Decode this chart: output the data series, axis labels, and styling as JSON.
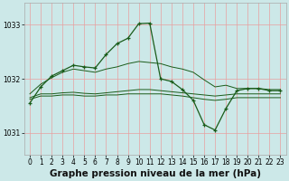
{
  "background_color": "#cce8e8",
  "grid_color": "#e8a0a0",
  "line_color": "#1a5c1a",
  "title": "Graphe pression niveau de la mer (hPa)",
  "xlim": [
    -0.5,
    23.5
  ],
  "ylim": [
    1030.6,
    1033.4
  ],
  "yticks": [
    1031,
    1032,
    1033
  ],
  "xticks": [
    0,
    1,
    2,
    3,
    4,
    5,
    6,
    7,
    8,
    9,
    10,
    11,
    12,
    13,
    14,
    15,
    16,
    17,
    18,
    19,
    20,
    21,
    22,
    23
  ],
  "series_main": {
    "x": [
      0,
      1,
      2,
      3,
      4,
      5,
      6,
      7,
      8,
      9,
      10,
      11,
      12,
      13,
      14,
      15,
      16,
      17,
      18,
      19,
      20,
      21,
      22,
      23
    ],
    "y": [
      1031.55,
      1031.85,
      1032.05,
      1032.15,
      1032.25,
      1032.22,
      1032.2,
      1032.45,
      1032.65,
      1032.75,
      1033.02,
      1033.03,
      1032.0,
      1031.95,
      1031.8,
      1031.6,
      1031.15,
      1031.05,
      1031.45,
      1031.78,
      1031.82,
      1031.82,
      1031.78,
      1031.78
    ]
  },
  "series_flat": [
    {
      "x": [
        0,
        1,
        2,
        3,
        4,
        5,
        6,
        7,
        8,
        9,
        10,
        11,
        12,
        13,
        14,
        15,
        16,
        17,
        18,
        19,
        20,
        21,
        22,
        23
      ],
      "y": [
        1031.72,
        1031.9,
        1032.02,
        1032.12,
        1032.18,
        1032.15,
        1032.12,
        1032.18,
        1032.22,
        1032.28,
        1032.32,
        1032.3,
        1032.28,
        1032.22,
        1032.18,
        1032.12,
        1031.98,
        1031.85,
        1031.88,
        1031.82,
        1031.82,
        1031.82,
        1031.8,
        1031.8
      ]
    },
    {
      "x": [
        0,
        1,
        2,
        3,
        4,
        5,
        6,
        7,
        8,
        9,
        10,
        11,
        12,
        13,
        14,
        15,
        16,
        17,
        18,
        19,
        20,
        21,
        22,
        23
      ],
      "y": [
        1031.65,
        1031.72,
        1031.72,
        1031.74,
        1031.75,
        1031.73,
        1031.72,
        1031.74,
        1031.76,
        1031.78,
        1031.8,
        1031.8,
        1031.78,
        1031.76,
        1031.74,
        1031.72,
        1031.7,
        1031.68,
        1031.7,
        1031.72,
        1031.72,
        1031.72,
        1031.72,
        1031.72
      ]
    },
    {
      "x": [
        0,
        1,
        2,
        3,
        4,
        5,
        6,
        7,
        8,
        9,
        10,
        11,
        12,
        13,
        14,
        15,
        16,
        17,
        18,
        19,
        20,
        21,
        22,
        23
      ],
      "y": [
        1031.62,
        1031.68,
        1031.68,
        1031.7,
        1031.7,
        1031.68,
        1031.68,
        1031.7,
        1031.7,
        1031.72,
        1031.72,
        1031.72,
        1031.72,
        1031.7,
        1031.68,
        1031.65,
        1031.62,
        1031.6,
        1031.62,
        1031.65,
        1031.65,
        1031.65,
        1031.65,
        1031.65
      ]
    }
  ],
  "title_fontsize": 7.5,
  "tick_fontsize": 5.5
}
